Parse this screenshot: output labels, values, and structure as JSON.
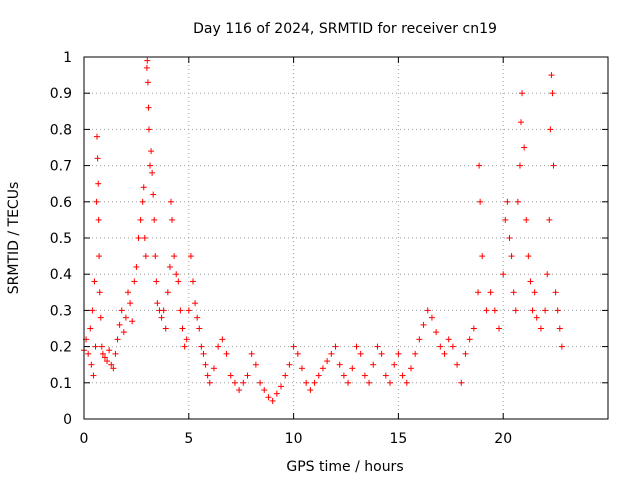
{
  "chart_data": {
    "type": "scatter",
    "title": "Day 116 of 2024, SRMTID for receiver cn19",
    "xlabel": "GPS time / hours",
    "ylabel": "SRMTID / TECUs",
    "xlim": [
      0,
      25
    ],
    "ylim": [
      0,
      1
    ],
    "xticks": [
      0,
      5,
      10,
      15,
      20
    ],
    "xtick_labels": [
      "0",
      "5",
      "10",
      "15",
      "20"
    ],
    "yticks": [
      0,
      0.1,
      0.2,
      0.3,
      0.4,
      0.5,
      0.6,
      0.7,
      0.8,
      0.9,
      1
    ],
    "ytick_labels": [
      "0",
      "0.1",
      "0.2",
      "0.3",
      "0.4",
      "0.5",
      "0.6",
      "0.7",
      "0.8",
      "0.9",
      "1"
    ],
    "grid": true,
    "marker": "+",
    "series": [
      {
        "name": "SRMTID",
        "color": "#ff0000",
        "points": [
          [
            0.0,
            0.19
          ],
          [
            0.1,
            0.22
          ],
          [
            0.2,
            0.18
          ],
          [
            0.3,
            0.25
          ],
          [
            0.35,
            0.15
          ],
          [
            0.4,
            0.3
          ],
          [
            0.45,
            0.12
          ],
          [
            0.5,
            0.38
          ],
          [
            0.55,
            0.2
          ],
          [
            0.6,
            0.6
          ],
          [
            0.62,
            0.78
          ],
          [
            0.65,
            0.72
          ],
          [
            0.68,
            0.65
          ],
          [
            0.7,
            0.55
          ],
          [
            0.72,
            0.45
          ],
          [
            0.75,
            0.35
          ],
          [
            0.8,
            0.28
          ],
          [
            0.85,
            0.2
          ],
          [
            0.9,
            0.18
          ],
          [
            1.0,
            0.17
          ],
          [
            1.1,
            0.16
          ],
          [
            1.2,
            0.19
          ],
          [
            1.3,
            0.15
          ],
          [
            1.4,
            0.14
          ],
          [
            1.5,
            0.18
          ],
          [
            1.6,
            0.22
          ],
          [
            1.7,
            0.26
          ],
          [
            1.8,
            0.3
          ],
          [
            1.9,
            0.24
          ],
          [
            2.0,
            0.28
          ],
          [
            2.1,
            0.35
          ],
          [
            2.2,
            0.32
          ],
          [
            2.3,
            0.27
          ],
          [
            2.4,
            0.38
          ],
          [
            2.5,
            0.42
          ],
          [
            2.6,
            0.5
          ],
          [
            2.7,
            0.55
          ],
          [
            2.8,
            0.6
          ],
          [
            2.85,
            0.64
          ],
          [
            2.9,
            0.5
          ],
          [
            2.95,
            0.45
          ],
          [
            3.0,
            0.97
          ],
          [
            3.02,
            0.99
          ],
          [
            3.05,
            0.93
          ],
          [
            3.08,
            0.86
          ],
          [
            3.1,
            0.8
          ],
          [
            3.15,
            0.7
          ],
          [
            3.2,
            0.74
          ],
          [
            3.25,
            0.68
          ],
          [
            3.3,
            0.62
          ],
          [
            3.35,
            0.55
          ],
          [
            3.4,
            0.45
          ],
          [
            3.45,
            0.38
          ],
          [
            3.5,
            0.32
          ],
          [
            3.6,
            0.3
          ],
          [
            3.7,
            0.28
          ],
          [
            3.8,
            0.3
          ],
          [
            3.9,
            0.25
          ],
          [
            4.0,
            0.35
          ],
          [
            4.1,
            0.42
          ],
          [
            4.15,
            0.6
          ],
          [
            4.2,
            0.55
          ],
          [
            4.3,
            0.45
          ],
          [
            4.4,
            0.4
          ],
          [
            4.5,
            0.38
          ],
          [
            4.6,
            0.3
          ],
          [
            4.7,
            0.25
          ],
          [
            4.8,
            0.2
          ],
          [
            4.9,
            0.22
          ],
          [
            5.0,
            0.3
          ],
          [
            5.1,
            0.45
          ],
          [
            5.2,
            0.38
          ],
          [
            5.3,
            0.32
          ],
          [
            5.4,
            0.28
          ],
          [
            5.5,
            0.25
          ],
          [
            5.6,
            0.2
          ],
          [
            5.7,
            0.18
          ],
          [
            5.8,
            0.15
          ],
          [
            5.9,
            0.12
          ],
          [
            6.0,
            0.1
          ],
          [
            6.2,
            0.14
          ],
          [
            6.4,
            0.2
          ],
          [
            6.6,
            0.22
          ],
          [
            6.8,
            0.18
          ],
          [
            7.0,
            0.12
          ],
          [
            7.2,
            0.1
          ],
          [
            7.4,
            0.08
          ],
          [
            7.6,
            0.1
          ],
          [
            7.8,
            0.12
          ],
          [
            8.0,
            0.18
          ],
          [
            8.2,
            0.15
          ],
          [
            8.4,
            0.1
          ],
          [
            8.6,
            0.08
          ],
          [
            8.8,
            0.06
          ],
          [
            9.0,
            0.05
          ],
          [
            9.2,
            0.07
          ],
          [
            9.4,
            0.09
          ],
          [
            9.6,
            0.12
          ],
          [
            9.8,
            0.15
          ],
          [
            10.0,
            0.2
          ],
          [
            10.2,
            0.18
          ],
          [
            10.4,
            0.14
          ],
          [
            10.6,
            0.1
          ],
          [
            10.8,
            0.08
          ],
          [
            11.0,
            0.1
          ],
          [
            11.2,
            0.12
          ],
          [
            11.4,
            0.14
          ],
          [
            11.6,
            0.16
          ],
          [
            11.8,
            0.18
          ],
          [
            12.0,
            0.2
          ],
          [
            12.2,
            0.15
          ],
          [
            12.4,
            0.12
          ],
          [
            12.6,
            0.1
          ],
          [
            12.8,
            0.14
          ],
          [
            13.0,
            0.2
          ],
          [
            13.2,
            0.18
          ],
          [
            13.4,
            0.12
          ],
          [
            13.6,
            0.1
          ],
          [
            13.8,
            0.15
          ],
          [
            14.0,
            0.2
          ],
          [
            14.2,
            0.18
          ],
          [
            14.4,
            0.12
          ],
          [
            14.6,
            0.1
          ],
          [
            14.8,
            0.15
          ],
          [
            15.0,
            0.18
          ],
          [
            15.2,
            0.12
          ],
          [
            15.4,
            0.1
          ],
          [
            15.6,
            0.14
          ],
          [
            15.8,
            0.18
          ],
          [
            16.0,
            0.22
          ],
          [
            16.2,
            0.26
          ],
          [
            16.4,
            0.3
          ],
          [
            16.6,
            0.28
          ],
          [
            16.8,
            0.24
          ],
          [
            17.0,
            0.2
          ],
          [
            17.2,
            0.18
          ],
          [
            17.4,
            0.22
          ],
          [
            17.6,
            0.2
          ],
          [
            17.8,
            0.15
          ],
          [
            18.0,
            0.1
          ],
          [
            18.2,
            0.18
          ],
          [
            18.4,
            0.22
          ],
          [
            18.6,
            0.25
          ],
          [
            18.8,
            0.35
          ],
          [
            18.85,
            0.7
          ],
          [
            18.9,
            0.6
          ],
          [
            19.0,
            0.45
          ],
          [
            19.2,
            0.3
          ],
          [
            19.4,
            0.35
          ],
          [
            19.6,
            0.3
          ],
          [
            19.8,
            0.25
          ],
          [
            20.0,
            0.4
          ],
          [
            20.1,
            0.55
          ],
          [
            20.2,
            0.6
          ],
          [
            20.3,
            0.5
          ],
          [
            20.4,
            0.45
          ],
          [
            20.5,
            0.35
          ],
          [
            20.6,
            0.3
          ],
          [
            20.7,
            0.6
          ],
          [
            20.8,
            0.7
          ],
          [
            20.85,
            0.82
          ],
          [
            20.9,
            0.9
          ],
          [
            21.0,
            0.75
          ],
          [
            21.1,
            0.55
          ],
          [
            21.2,
            0.45
          ],
          [
            21.3,
            0.38
          ],
          [
            21.4,
            0.3
          ],
          [
            21.5,
            0.35
          ],
          [
            21.6,
            0.28
          ],
          [
            21.8,
            0.25
          ],
          [
            22.0,
            0.3
          ],
          [
            22.1,
            0.4
          ],
          [
            22.2,
            0.55
          ],
          [
            22.25,
            0.8
          ],
          [
            22.3,
            0.95
          ],
          [
            22.35,
            0.9
          ],
          [
            22.4,
            0.7
          ],
          [
            22.5,
            0.35
          ],
          [
            22.6,
            0.3
          ],
          [
            22.7,
            0.25
          ],
          [
            22.8,
            0.2
          ]
        ]
      }
    ]
  }
}
